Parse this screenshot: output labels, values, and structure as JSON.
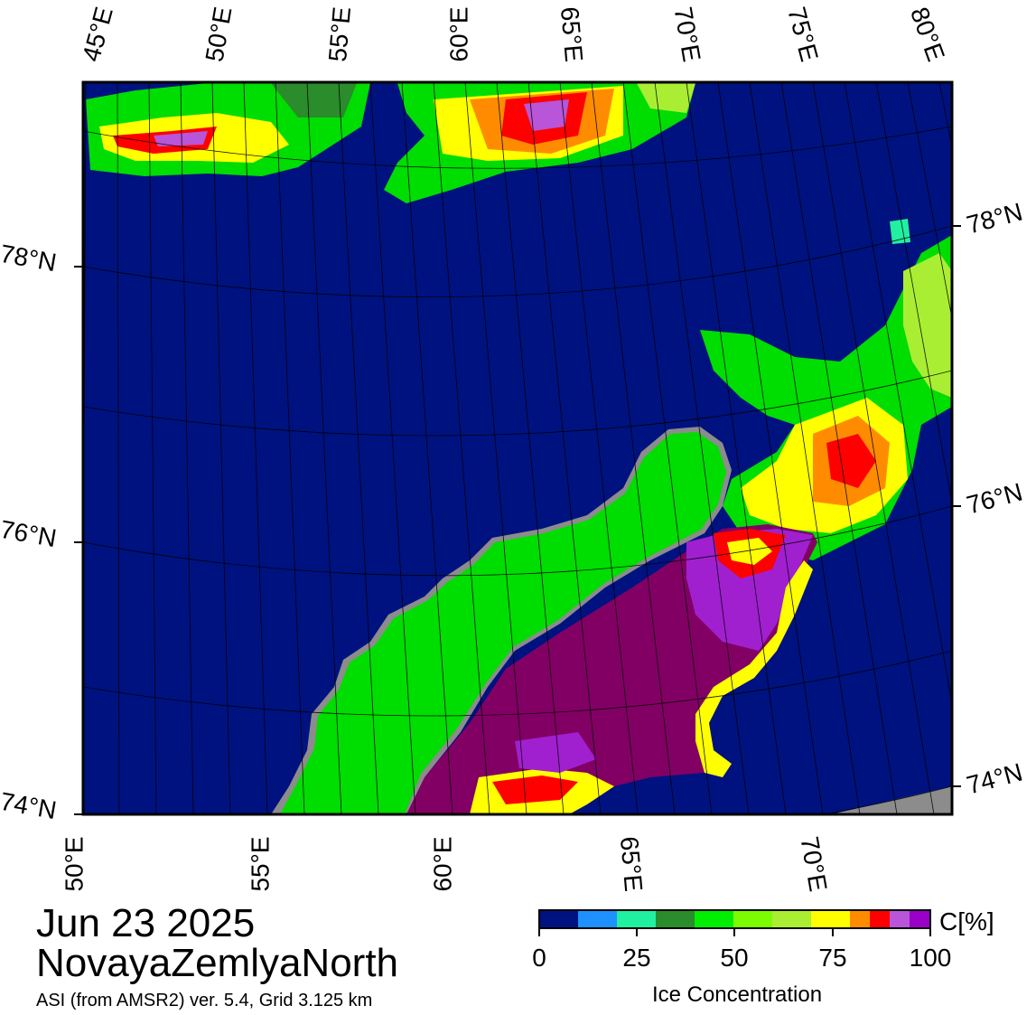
{
  "date": "Jun 23 2025",
  "region": "NovayaZemlyaNorth",
  "source": "ASI (from AMSR2) ver. 5.4,  Grid 3.125 km",
  "colorbar": {
    "unit": "C[%]",
    "title": "Ice Concentration",
    "ticks": [
      "0",
      "25",
      "50",
      "75",
      "100"
    ],
    "colors": [
      "#00127f",
      "#1e90ff",
      "#20f0a0",
      "#2a8c2a",
      "#00ee00",
      "#7cfc00",
      "#aaee33",
      "#ffff00",
      "#ff8c00",
      "#ff0000",
      "#b855d8",
      "#9a00c8"
    ]
  },
  "map_colors": {
    "ocean": "#00127f",
    "land": "#00dd00",
    "land_ice_edge": "#8c8c8c",
    "ice_high": "#820064",
    "ice_purple": "#a020d0"
  },
  "top_labels": [
    "45°E",
    "50°E",
    "55°E",
    "60°E",
    "65°E",
    "70°E",
    "75°E",
    "80°E"
  ],
  "bottom_labels": [
    "50°E",
    "55°E",
    "60°E",
    "65°E",
    "70°E"
  ],
  "left_labels": [
    "78°N",
    "76°N",
    "74°N"
  ],
  "right_labels": [
    "78°N",
    "76°N",
    "74°N"
  ]
}
